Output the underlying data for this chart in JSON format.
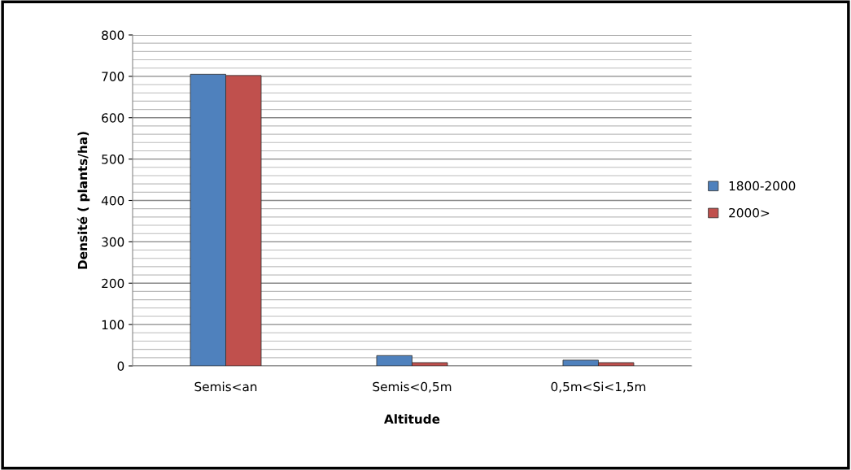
{
  "chart_data": {
    "type": "bar",
    "xlabel": "Altitude",
    "ylabel": "Densité ( plants/ha)",
    "categories": [
      "Semis<an",
      "Semis<0,5m",
      "0,5m<Si<1,5m"
    ],
    "series": [
      {
        "name": "1800-2000",
        "color": "#4f81bd",
        "values": [
          705,
          25,
          14
        ]
      },
      {
        "name": "2000>",
        "color": "#c0504d",
        "values": [
          702,
          8,
          8
        ]
      }
    ],
    "ylim": [
      0,
      800
    ],
    "yticks": [
      0,
      100,
      200,
      300,
      400,
      500,
      600,
      700,
      800
    ],
    "grid": "y",
    "legend": "right"
  }
}
